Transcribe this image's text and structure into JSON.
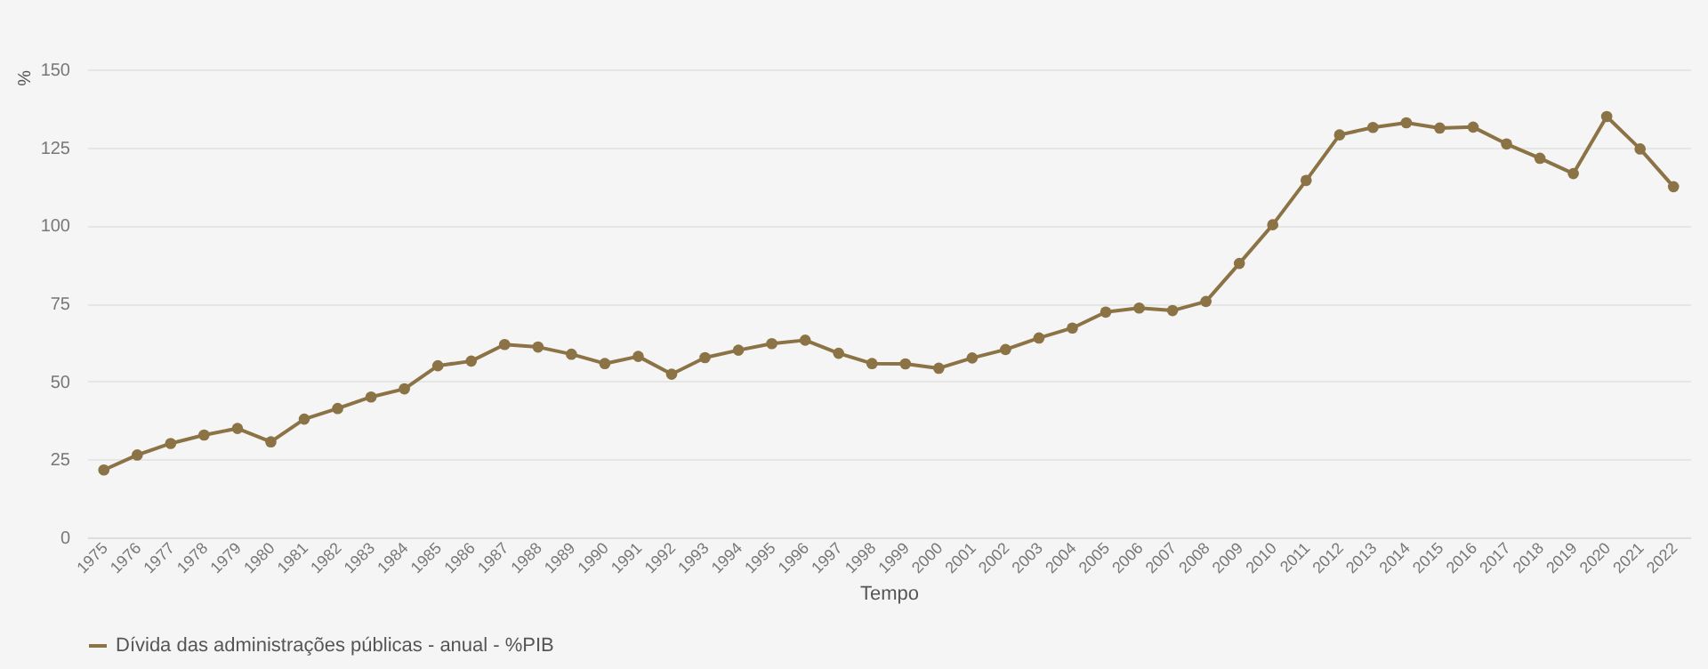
{
  "chart_data": {
    "type": "line",
    "xlabel": "Tempo",
    "ylabel": "%",
    "categories": [
      "1975",
      "1976",
      "1977",
      "1978",
      "1979",
      "1980",
      "1981",
      "1982",
      "1983",
      "1984",
      "1985",
      "1986",
      "1987",
      "1988",
      "1989",
      "1990",
      "1991",
      "1992",
      "1993",
      "1994",
      "1995",
      "1996",
      "1997",
      "1998",
      "1999",
      "2000",
      "2001",
      "2002",
      "2003",
      "2004",
      "2005",
      "2006",
      "2007",
      "2008",
      "2009",
      "2010",
      "2011",
      "2012",
      "2013",
      "2014",
      "2015",
      "2016",
      "2017",
      "2018",
      "2019",
      "2020",
      "2021",
      "2022"
    ],
    "series": [
      {
        "name": "Dívida das administrações públicas - anual - %PIB",
        "color": "#8b7346",
        "values": [
          21.6,
          26.4,
          30.1,
          32.8,
          34.9,
          30.6,
          37.9,
          41.3,
          45.0,
          47.6,
          55.0,
          56.5,
          61.8,
          61.0,
          58.7,
          55.7,
          58.0,
          52.3,
          57.6,
          60.0,
          62.1,
          63.2,
          59.0,
          55.7,
          55.6,
          54.2,
          57.5,
          60.2,
          63.9,
          67.1,
          72.2,
          73.5,
          72.7,
          75.6,
          87.8,
          100.2,
          114.4,
          129.0,
          131.4,
          132.9,
          131.2,
          131.5,
          126.1,
          121.5,
          116.6,
          134.9,
          124.5,
          112.4
        ]
      }
    ],
    "ylim": [
      0,
      150
    ],
    "yticks": [
      0,
      25,
      50,
      75,
      100,
      125,
      150
    ],
    "grid": "y",
    "legend": "bottom",
    "marker": "circle",
    "line_style": "solid"
  }
}
